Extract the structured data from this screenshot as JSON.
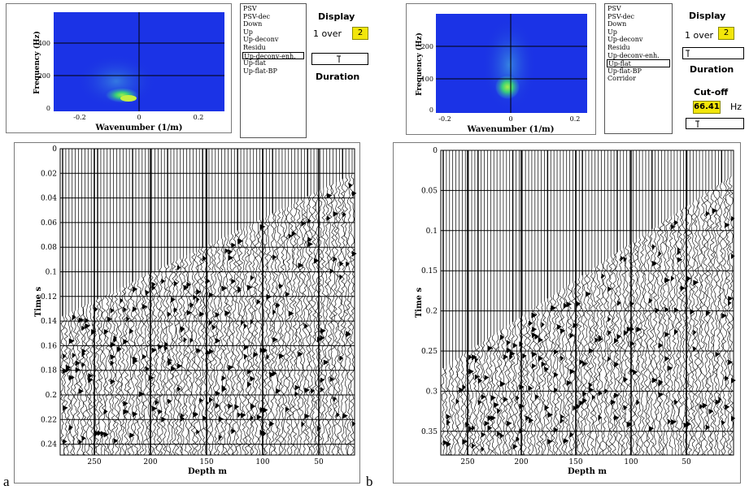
{
  "panels": [
    {
      "tag": "a",
      "spectrum": {
        "ylabel": "Frequency (Hz)",
        "xlabel": "Wavenumber (1/m)",
        "yticks": [
          "400",
          "200",
          "0"
        ],
        "xticks": [
          "-0.2",
          "0",
          "0.2"
        ]
      },
      "wavefield_list": [
        "PSV",
        "PSV-dec",
        "Down",
        "Up",
        "Up-deconv",
        "Residu",
        "Up-deconv-enh.",
        "Up-flat",
        "Up-flat-BP"
      ],
      "selected_index": 6,
      "display_label": "Display",
      "one_over_label": "1 over",
      "one_over_value": "2",
      "duration_label": "Duration",
      "section": {
        "ylabel": "Time s",
        "xlabel": "Depth m",
        "yticks": [
          "0",
          "0.02",
          "0.04",
          "0.06",
          "0.08",
          "0.1",
          "0.12",
          "0.14",
          "0.16",
          "0.18",
          "0.2",
          "0.22",
          "0.24"
        ],
        "xticks": [
          "250",
          "200",
          "150",
          "100",
          "50"
        ]
      }
    },
    {
      "tag": "b",
      "spectrum": {
        "ylabel": "Frequency (Hz)",
        "xlabel": "Wavenumber (1/m)",
        "yticks": [
          "200",
          "100",
          "0"
        ],
        "xticks": [
          "-0.2",
          "0",
          "0.2"
        ]
      },
      "wavefield_list": [
        "PSV",
        "PSV-dec",
        "Down",
        "Up",
        "Up-deconv",
        "Residu",
        "Up-deconv-enh.",
        "Up-flat",
        "Up-flat-BP",
        "Corridor"
      ],
      "selected_index": 7,
      "display_label": "Display",
      "one_over_label": "1 over",
      "one_over_value": "2",
      "duration_label": "Duration",
      "cutoff_label": "Cut-off",
      "cutoff_value": "66.41",
      "cutoff_unit": "Hz",
      "section": {
        "ylabel": "Time s",
        "xlabel": "Depth m",
        "yticks": [
          "0",
          "0.05",
          "0.1",
          "0.15",
          "0.2",
          "0.25",
          "0.3",
          "0.35"
        ],
        "xticks": [
          "250",
          "200",
          "150",
          "100",
          "50"
        ]
      }
    }
  ],
  "colors": {
    "spectrum_bg": "#1a2fe0",
    "spectrum_hot": "#39e07a",
    "cutoff_bg": "#f2e60a"
  }
}
